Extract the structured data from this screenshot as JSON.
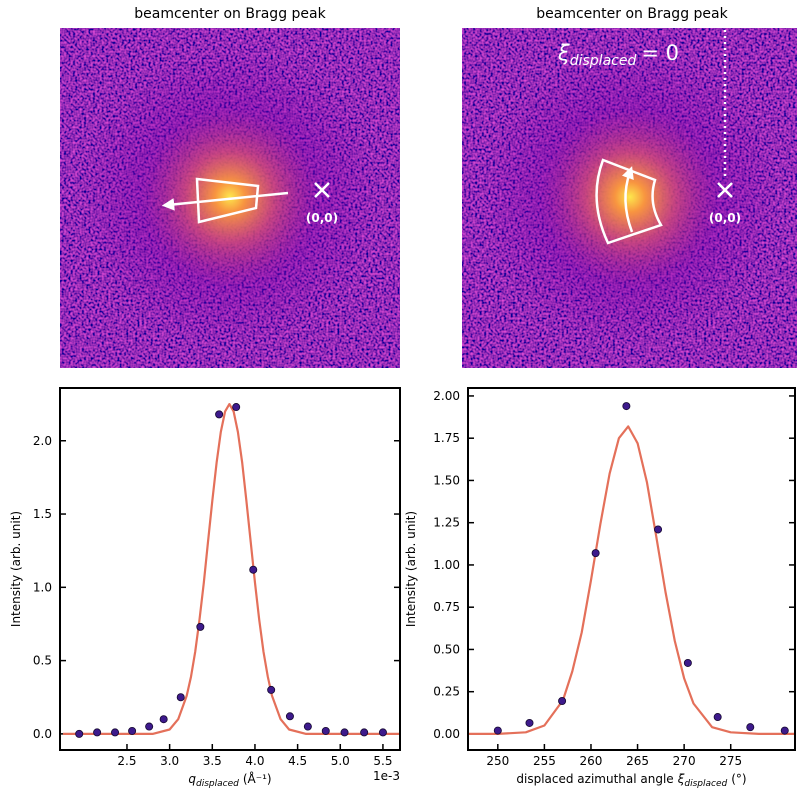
{
  "chart_data": [
    {
      "type": "image",
      "title": "beamcenter on Bragg peak",
      "annotations": [
        "(0,0)"
      ]
    },
    {
      "type": "image",
      "title": "beamcenter on Bragg peak",
      "annotations": [
        "(0,0)"
      ],
      "equation": {
        "symbol": "ξ",
        "subscript": "displaced",
        "rest": "= 0"
      }
    },
    {
      "type": "scatter",
      "ylabel": "Intensity (arb. unit)",
      "xlabel": {
        "symbol": "q",
        "subscript": "displaced",
        "unit": "(Å⁻¹)"
      },
      "offset_text": "1e-3",
      "xlim": [
        1.715,
        5.7
      ],
      "ylim": [
        -0.11,
        2.36
      ],
      "xticks": [
        2.5,
        {
          "value": 3,
          "label": "3.0"
        },
        3.5,
        {
          "value": 4,
          "label": "4.0"
        },
        4.5,
        {
          "value": 5,
          "label": "5.0"
        },
        5.5
      ],
      "yticks": [
        {
          "value": 0,
          "label": "0.0"
        },
        0.5,
        {
          "value": 1,
          "label": "1.0"
        },
        1.5,
        {
          "value": 2,
          "label": "2.0"
        }
      ],
      "series": [
        {
          "kind": "line",
          "color": "#e4705a",
          "x": [
            1.75,
            2.8,
            3.0,
            3.1,
            3.2,
            3.25,
            3.3,
            3.35,
            3.4,
            3.45,
            3.5,
            3.55,
            3.6,
            3.65,
            3.7,
            3.75,
            3.8,
            3.85,
            3.9,
            3.95,
            4.0,
            4.05,
            4.1,
            4.15,
            4.2,
            4.3,
            4.4,
            4.6,
            5.7
          ],
          "values": [
            0,
            0,
            0.03,
            0.1,
            0.26,
            0.39,
            0.56,
            0.78,
            1.03,
            1.31,
            1.59,
            1.85,
            2.06,
            2.2,
            2.25,
            2.2,
            2.06,
            1.85,
            1.59,
            1.31,
            1.03,
            0.78,
            0.56,
            0.39,
            0.26,
            0.1,
            0.03,
            0,
            0
          ]
        },
        {
          "kind": "scatter",
          "color": "#3d1a8c",
          "x": [
            1.94,
            2.15,
            2.36,
            2.56,
            2.76,
            2.93,
            3.13,
            3.36,
            3.58,
            3.78,
            3.98,
            4.19,
            4.41,
            4.62,
            4.83,
            5.05,
            5.28,
            5.5
          ],
          "values": [
            0.0,
            0.01,
            0.01,
            0.02,
            0.05,
            0.1,
            0.25,
            0.73,
            2.18,
            2.23,
            1.12,
            0.3,
            0.12,
            0.05,
            0.02,
            0.01,
            0.01,
            0.01
          ]
        }
      ]
    },
    {
      "type": "scatter",
      "ylabel": "Intensity (arb. unit)",
      "xlabel": {
        "prefix": "displaced azimuthal angle",
        "symbol": "ξ",
        "subscript": "displaced",
        "unit": "(°)"
      },
      "xlim": [
        246.8,
        281.9
      ],
      "ylim": [
        -0.095,
        2.047
      ],
      "xticks": [
        250,
        255,
        260,
        265,
        270,
        275
      ],
      "yticks": [
        {
          "value": 0,
          "label": "0.00"
        },
        0.25,
        {
          "value": 0.5,
          "label": "0.50"
        },
        0.75,
        {
          "value": 1,
          "label": "1.00"
        },
        1.25,
        {
          "value": 1.5,
          "label": "1.50"
        },
        1.75,
        {
          "value": 2,
          "label": "2.00"
        }
      ],
      "series": [
        {
          "kind": "line",
          "color": "#e4705a",
          "x": [
            246.8,
            250,
            253,
            255,
            257,
            258,
            259,
            260,
            261,
            262,
            263,
            264,
            265,
            266,
            267,
            268,
            269,
            270,
            271,
            273,
            275,
            278,
            281.9
          ],
          "values": [
            0,
            0,
            0.01,
            0.05,
            0.2,
            0.37,
            0.6,
            0.91,
            1.24,
            1.54,
            1.75,
            1.82,
            1.72,
            1.49,
            1.17,
            0.84,
            0.55,
            0.33,
            0.18,
            0.04,
            0.01,
            0,
            0
          ]
        },
        {
          "kind": "scatter",
          "color": "#3d1a8c",
          "x": [
            250.0,
            253.4,
            256.9,
            260.5,
            263.8,
            267.2,
            270.4,
            273.6,
            277.1,
            280.8
          ],
          "values": [
            0.02,
            0.065,
            0.195,
            1.07,
            1.94,
            1.21,
            0.42,
            0.1,
            0.04,
            0.02
          ]
        }
      ]
    }
  ]
}
